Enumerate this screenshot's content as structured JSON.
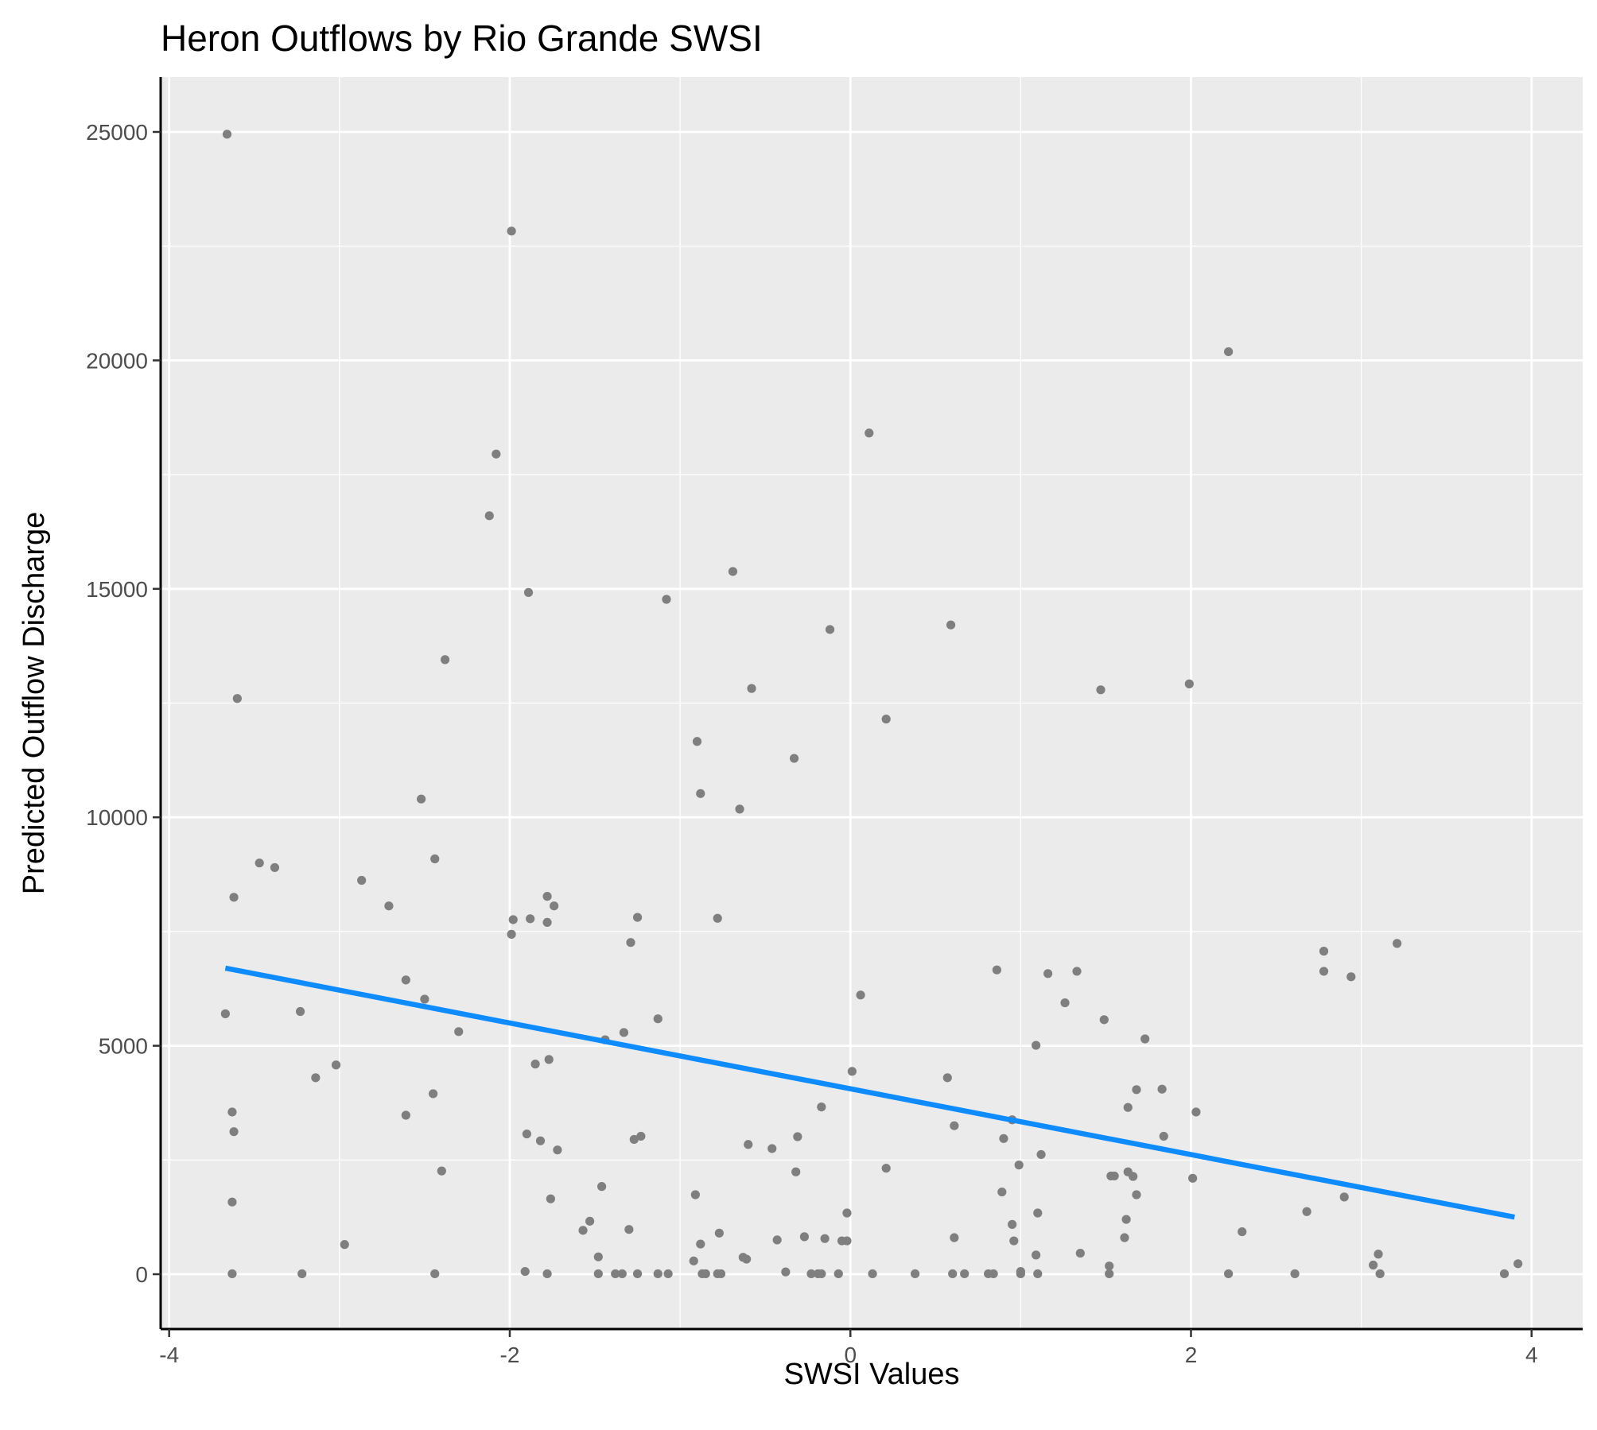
{
  "chart_data": {
    "type": "scatter",
    "title": "Heron Outflows by Rio Grande SWSI",
    "xlabel": "SWSI Values",
    "ylabel": "Predicted Outflow Discharge",
    "xlim": [
      -4.05,
      4.3
    ],
    "ylim": [
      -1200,
      26200
    ],
    "x_ticks": [
      -4,
      -2,
      0,
      2,
      4
    ],
    "y_ticks": [
      0,
      5000,
      10000,
      15000,
      20000,
      25000
    ],
    "grid": true,
    "legend": "none",
    "colors": {
      "panel": "#ebebeb",
      "grid": "#ffffff",
      "points": "#7f7f7f",
      "trend": "#0d8bff",
      "axis": "#000000"
    },
    "points": [
      [
        -3.66,
        24950
      ],
      [
        -3.6,
        12600
      ],
      [
        -3.62,
        8250
      ],
      [
        -3.67,
        5700
      ],
      [
        -3.63,
        3550
      ],
      [
        -3.62,
        3120
      ],
      [
        -3.63,
        1580
      ],
      [
        -3.63,
        10
      ],
      [
        -3.47,
        9000
      ],
      [
        -3.38,
        8900
      ],
      [
        -3.23,
        5750
      ],
      [
        -3.14,
        4300
      ],
      [
        -3.22,
        10
      ],
      [
        -3.02,
        4580
      ],
      [
        -2.97,
        650
      ],
      [
        -2.87,
        8620
      ],
      [
        -2.71,
        8060
      ],
      [
        -2.61,
        6440
      ],
      [
        -2.61,
        3480
      ],
      [
        -2.52,
        10400
      ],
      [
        -2.5,
        6020
      ],
      [
        -2.44,
        9090
      ],
      [
        -2.45,
        3950
      ],
      [
        -2.4,
        2260
      ],
      [
        -2.44,
        10
      ],
      [
        -2.38,
        13450
      ],
      [
        -2.3,
        5310
      ],
      [
        -2.08,
        17950
      ],
      [
        -2.12,
        16600
      ],
      [
        -1.99,
        22830
      ],
      [
        -1.89,
        14920
      ],
      [
        -1.98,
        7760
      ],
      [
        -1.99,
        7440
      ],
      [
        -1.88,
        7780
      ],
      [
        -1.78,
        8270
      ],
      [
        -1.78,
        7700
      ],
      [
        -1.74,
        8060
      ],
      [
        -1.85,
        4600
      ],
      [
        -1.77,
        4700
      ],
      [
        -1.9,
        3070
      ],
      [
        -1.82,
        2920
      ],
      [
        -1.72,
        2720
      ],
      [
        -1.76,
        1650
      ],
      [
        -1.91,
        60
      ],
      [
        -1.78,
        10
      ],
      [
        -1.57,
        960
      ],
      [
        -1.53,
        1160
      ],
      [
        -1.46,
        1920
      ],
      [
        -1.48,
        380
      ],
      [
        -1.48,
        10
      ],
      [
        -1.44,
        5130
      ],
      [
        -1.38,
        10
      ],
      [
        -1.34,
        10
      ],
      [
        -1.33,
        5290
      ],
      [
        -1.3,
        980
      ],
      [
        -1.29,
        7260
      ],
      [
        -1.25,
        7810
      ],
      [
        -1.23,
        3020
      ],
      [
        -1.27,
        2950
      ],
      [
        -1.25,
        10
      ],
      [
        -1.13,
        5590
      ],
      [
        -1.08,
        14770
      ],
      [
        -1.13,
        10
      ],
      [
        -1.07,
        10
      ],
      [
        -0.9,
        11660
      ],
      [
        -0.88,
        10520
      ],
      [
        -0.91,
        1740
      ],
      [
        -0.88,
        660
      ],
      [
        -0.92,
        290
      ],
      [
        -0.87,
        10
      ],
      [
        -0.85,
        10
      ],
      [
        -0.78,
        7790
      ],
      [
        -0.69,
        15380
      ],
      [
        -0.65,
        10180
      ],
      [
        -0.58,
        12820
      ],
      [
        -0.77,
        900
      ],
      [
        -0.78,
        10
      ],
      [
        -0.76,
        10
      ],
      [
        -0.6,
        2840
      ],
      [
        -0.63,
        370
      ],
      [
        -0.61,
        330
      ],
      [
        -0.46,
        2750
      ],
      [
        -0.43,
        750
      ],
      [
        -0.38,
        50
      ],
      [
        -0.33,
        11290
      ],
      [
        -0.12,
        14110
      ],
      [
        -0.17,
        3660
      ],
      [
        -0.31,
        3010
      ],
      [
        -0.32,
        2240
      ],
      [
        -0.27,
        820
      ],
      [
        -0.23,
        10
      ],
      [
        -0.19,
        10
      ],
      [
        -0.17,
        10
      ],
      [
        -0.15,
        780
      ],
      [
        -0.07,
        10
      ],
      [
        -0.05,
        730
      ],
      [
        -0.02,
        730
      ],
      [
        -0.02,
        1340
      ],
      [
        0.01,
        4440
      ],
      [
        0.11,
        18410
      ],
      [
        0.06,
        6110
      ],
      [
        0.21,
        12150
      ],
      [
        0.21,
        2320
      ],
      [
        0.13,
        10
      ],
      [
        0.38,
        10
      ],
      [
        0.59,
        14210
      ],
      [
        0.57,
        4300
      ],
      [
        0.61,
        3250
      ],
      [
        0.61,
        800
      ],
      [
        0.6,
        10
      ],
      [
        0.67,
        10
      ],
      [
        0.81,
        10
      ],
      [
        0.84,
        10
      ],
      [
        0.86,
        6660
      ],
      [
        0.89,
        1800
      ],
      [
        0.9,
        2970
      ],
      [
        0.95,
        3380
      ],
      [
        0.95,
        1090
      ],
      [
        0.96,
        730
      ],
      [
        0.99,
        2390
      ],
      [
        1.0,
        60
      ],
      [
        1.0,
        10
      ],
      [
        1.09,
        5010
      ],
      [
        1.1,
        1340
      ],
      [
        1.12,
        2620
      ],
      [
        1.09,
        420
      ],
      [
        1.1,
        10
      ],
      [
        1.16,
        6580
      ],
      [
        1.26,
        5940
      ],
      [
        1.33,
        6630
      ],
      [
        1.35,
        460
      ],
      [
        1.47,
        12790
      ],
      [
        1.49,
        5570
      ],
      [
        1.53,
        2150
      ],
      [
        1.55,
        2150
      ],
      [
        1.52,
        180
      ],
      [
        1.52,
        10
      ],
      [
        1.63,
        3650
      ],
      [
        1.63,
        2240
      ],
      [
        1.62,
        1200
      ],
      [
        1.61,
        800
      ],
      [
        1.66,
        2140
      ],
      [
        1.68,
        4040
      ],
      [
        1.68,
        1740
      ],
      [
        1.73,
        5150
      ],
      [
        1.83,
        4050
      ],
      [
        1.84,
        3020
      ],
      [
        1.99,
        12920
      ],
      [
        2.03,
        3550
      ],
      [
        2.01,
        2100
      ],
      [
        2.22,
        20190
      ],
      [
        2.22,
        10
      ],
      [
        2.3,
        930
      ],
      [
        2.61,
        10
      ],
      [
        2.68,
        1370
      ],
      [
        2.78,
        7070
      ],
      [
        2.78,
        6630
      ],
      [
        2.9,
        1690
      ],
      [
        2.94,
        6510
      ],
      [
        3.07,
        200
      ],
      [
        3.1,
        440
      ],
      [
        3.11,
        10
      ],
      [
        3.21,
        7240
      ],
      [
        3.84,
        10
      ],
      [
        3.92,
        230
      ]
    ],
    "trend_line": {
      "x": [
        -3.67,
        3.9
      ],
      "y": [
        6700,
        1250
      ]
    }
  }
}
